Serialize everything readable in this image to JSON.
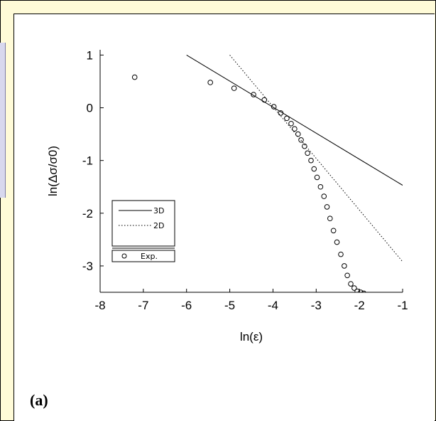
{
  "panel_label": "(a)",
  "chart_data": {
    "type": "scatter",
    "xlabel": "ln(ε)",
    "ylabel": "ln(Δσ/σ0)",
    "xlim": [
      -8,
      -1
    ],
    "ylim": [
      -3.5,
      1.1
    ],
    "xticks": [
      -8,
      -7,
      -6,
      -5,
      -4,
      -3,
      -2,
      -1
    ],
    "yticks": [
      1,
      0,
      -1,
      -2,
      -3
    ],
    "grid": false,
    "legend_position": "lower-left",
    "series": [
      {
        "name": "3D",
        "kind": "line",
        "style": "solid",
        "color": "#000000",
        "x": [
          -6,
          -1
        ],
        "y": [
          1.0,
          -1.47
        ]
      },
      {
        "name": "2D",
        "kind": "line",
        "style": "dotted",
        "color": "#000000",
        "x": [
          -5,
          -1
        ],
        "y": [
          1.0,
          -2.92
        ]
      },
      {
        "name": "Exp.",
        "kind": "markers",
        "marker": "open-circle",
        "color": "#000000",
        "x": [
          -7.2,
          -5.45,
          -4.9,
          -4.45,
          -4.2,
          -3.98,
          -3.82,
          -3.68,
          -3.58,
          -3.5,
          -3.42,
          -3.35,
          -3.27,
          -3.2,
          -3.12,
          -3.05,
          -2.98,
          -2.9,
          -2.82,
          -2.75,
          -2.68,
          -2.6,
          -2.52,
          -2.43,
          -2.35,
          -2.28,
          -2.2,
          -2.12,
          -2.05,
          -1.97,
          -1.9
        ],
        "y": [
          0.58,
          0.48,
          0.37,
          0.25,
          0.15,
          0.02,
          -0.1,
          -0.2,
          -0.3,
          -0.4,
          -0.5,
          -0.61,
          -0.73,
          -0.86,
          -1.0,
          -1.16,
          -1.32,
          -1.5,
          -1.68,
          -1.88,
          -2.1,
          -2.33,
          -2.55,
          -2.78,
          -3.0,
          -3.18,
          -3.34,
          -3.42,
          -3.48,
          -3.5,
          -3.52
        ]
      }
    ],
    "legend": [
      "3D",
      "2D",
      "Exp."
    ]
  }
}
